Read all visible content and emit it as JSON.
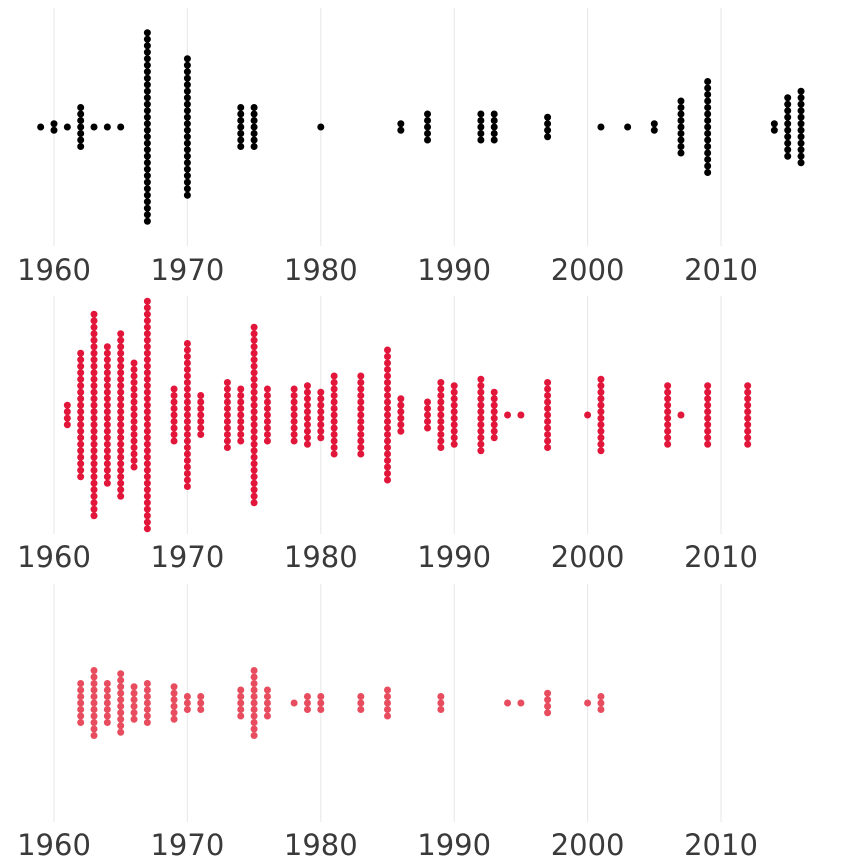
{
  "chart_data": [
    {
      "type": "scatter",
      "title": "",
      "xlabel": "",
      "ylabel": "",
      "xlim": [
        1958,
        2017
      ],
      "x_ticks": [
        1960,
        1970,
        1980,
        1990,
        2000,
        2010
      ],
      "tick_labels": [
        "1960",
        "1970",
        "1980",
        "1990",
        "2000",
        "2010"
      ],
      "grid": true,
      "series": [
        {
          "color": "#000000",
          "counts": [
            {
              "x": 1959,
              "count": 1
            },
            {
              "x": 1960,
              "count": 2
            },
            {
              "x": 1961,
              "count": 1
            },
            {
              "x": 1962,
              "count": 7
            },
            {
              "x": 1963,
              "count": 1
            },
            {
              "x": 1964,
              "count": 1
            },
            {
              "x": 1965,
              "count": 1
            },
            {
              "x": 1967,
              "count": 30
            },
            {
              "x": 1970,
              "count": 22
            },
            {
              "x": 1974,
              "count": 7
            },
            {
              "x": 1975,
              "count": 7
            },
            {
              "x": 1980,
              "count": 1
            },
            {
              "x": 1986,
              "count": 2
            },
            {
              "x": 1988,
              "count": 5
            },
            {
              "x": 1992,
              "count": 5
            },
            {
              "x": 1993,
              "count": 5
            },
            {
              "x": 1997,
              "count": 4
            },
            {
              "x": 2001,
              "count": 1
            },
            {
              "x": 2003,
              "count": 1
            },
            {
              "x": 2005,
              "count": 2
            },
            {
              "x": 2007,
              "count": 9
            },
            {
              "x": 2009,
              "count": 15
            },
            {
              "x": 2014,
              "count": 2
            },
            {
              "x": 2015,
              "count": 10
            },
            {
              "x": 2016,
              "count": 12
            }
          ]
        }
      ]
    },
    {
      "type": "scatter",
      "title": "",
      "xlabel": "",
      "ylabel": "",
      "xlim": [
        1958,
        2017
      ],
      "x_ticks": [
        1960,
        1970,
        1980,
        1990,
        2000,
        2010
      ],
      "tick_labels": [
        "1960",
        "1970",
        "1980",
        "1990",
        "2000",
        "2010"
      ],
      "grid": true,
      "series": [
        {
          "color": "#e2163a",
          "counts": [
            {
              "x": 1961,
              "count": 4
            },
            {
              "x": 1962,
              "count": 20
            },
            {
              "x": 1963,
              "count": 32
            },
            {
              "x": 1964,
              "count": 22
            },
            {
              "x": 1965,
              "count": 26
            },
            {
              "x": 1966,
              "count": 17
            },
            {
              "x": 1967,
              "count": 36
            },
            {
              "x": 1969,
              "count": 9
            },
            {
              "x": 1970,
              "count": 23
            },
            {
              "x": 1971,
              "count": 7
            },
            {
              "x": 1973,
              "count": 11
            },
            {
              "x": 1974,
              "count": 9
            },
            {
              "x": 1975,
              "count": 28
            },
            {
              "x": 1976,
              "count": 9
            },
            {
              "x": 1978,
              "count": 9
            },
            {
              "x": 1979,
              "count": 10
            },
            {
              "x": 1980,
              "count": 8
            },
            {
              "x": 1981,
              "count": 13
            },
            {
              "x": 1983,
              "count": 13
            },
            {
              "x": 1985,
              "count": 21
            },
            {
              "x": 1986,
              "count": 6
            },
            {
              "x": 1988,
              "count": 5
            },
            {
              "x": 1989,
              "count": 11
            },
            {
              "x": 1990,
              "count": 10
            },
            {
              "x": 1992,
              "count": 12
            },
            {
              "x": 1993,
              "count": 8
            },
            {
              "x": 1994,
              "count": 1
            },
            {
              "x": 1995,
              "count": 1
            },
            {
              "x": 1997,
              "count": 11
            },
            {
              "x": 2000,
              "count": 1
            },
            {
              "x": 2001,
              "count": 12
            },
            {
              "x": 2006,
              "count": 10
            },
            {
              "x": 2007,
              "count": 1
            },
            {
              "x": 2009,
              "count": 10
            },
            {
              "x": 2012,
              "count": 10
            }
          ]
        }
      ]
    },
    {
      "type": "scatter",
      "title": "",
      "xlabel": "",
      "ylabel": "",
      "xlim": [
        1958,
        2017
      ],
      "x_ticks": [
        1960,
        1970,
        1980,
        1990,
        2000,
        2010
      ],
      "tick_labels": [
        "1960",
        "1970",
        "1980",
        "1990",
        "2000",
        "2010"
      ],
      "grid": true,
      "series": [
        {
          "color": "#e84d5f",
          "counts": [
            {
              "x": 1962,
              "count": 7
            },
            {
              "x": 1963,
              "count": 11
            },
            {
              "x": 1964,
              "count": 7
            },
            {
              "x": 1965,
              "count": 10
            },
            {
              "x": 1966,
              "count": 6
            },
            {
              "x": 1967,
              "count": 7
            },
            {
              "x": 1969,
              "count": 6
            },
            {
              "x": 1970,
              "count": 3
            },
            {
              "x": 1971,
              "count": 3
            },
            {
              "x": 1974,
              "count": 5
            },
            {
              "x": 1975,
              "count": 11
            },
            {
              "x": 1976,
              "count": 5
            },
            {
              "x": 1978,
              "count": 1
            },
            {
              "x": 1979,
              "count": 3
            },
            {
              "x": 1980,
              "count": 3
            },
            {
              "x": 1983,
              "count": 3
            },
            {
              "x": 1985,
              "count": 5
            },
            {
              "x": 1989,
              "count": 3
            },
            {
              "x": 1994,
              "count": 1
            },
            {
              "x": 1995,
              "count": 1
            },
            {
              "x": 1997,
              "count": 4
            },
            {
              "x": 2000,
              "count": 1
            },
            {
              "x": 2001,
              "count": 3
            }
          ]
        }
      ]
    }
  ]
}
